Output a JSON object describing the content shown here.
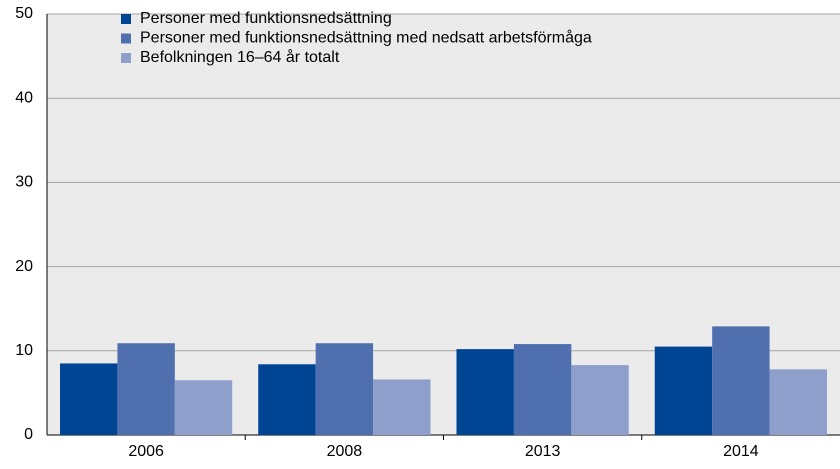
{
  "chart_data": {
    "type": "bar",
    "categories": [
      "2006",
      "2008",
      "2013",
      "2014"
    ],
    "series": [
      {
        "name": "Personer med funktionsnedsättning",
        "color": "#004494",
        "values": [
          8.5,
          8.4,
          10.2,
          10.5
        ]
      },
      {
        "name": "Personer med funktionsnedsättning med nedsatt arbetsförmåga",
        "color": "#4f6fae",
        "values": [
          10.9,
          10.9,
          10.8,
          12.9
        ]
      },
      {
        "name": "Befolkningen 16–64 år totalt",
        "color": "#8e9fcb",
        "values": [
          6.5,
          6.6,
          8.3,
          7.8
        ]
      }
    ],
    "ylim": [
      0,
      50
    ],
    "yticks": [
      0,
      10,
      20,
      30,
      40,
      50
    ],
    "grid": true,
    "legend": "top-left"
  }
}
